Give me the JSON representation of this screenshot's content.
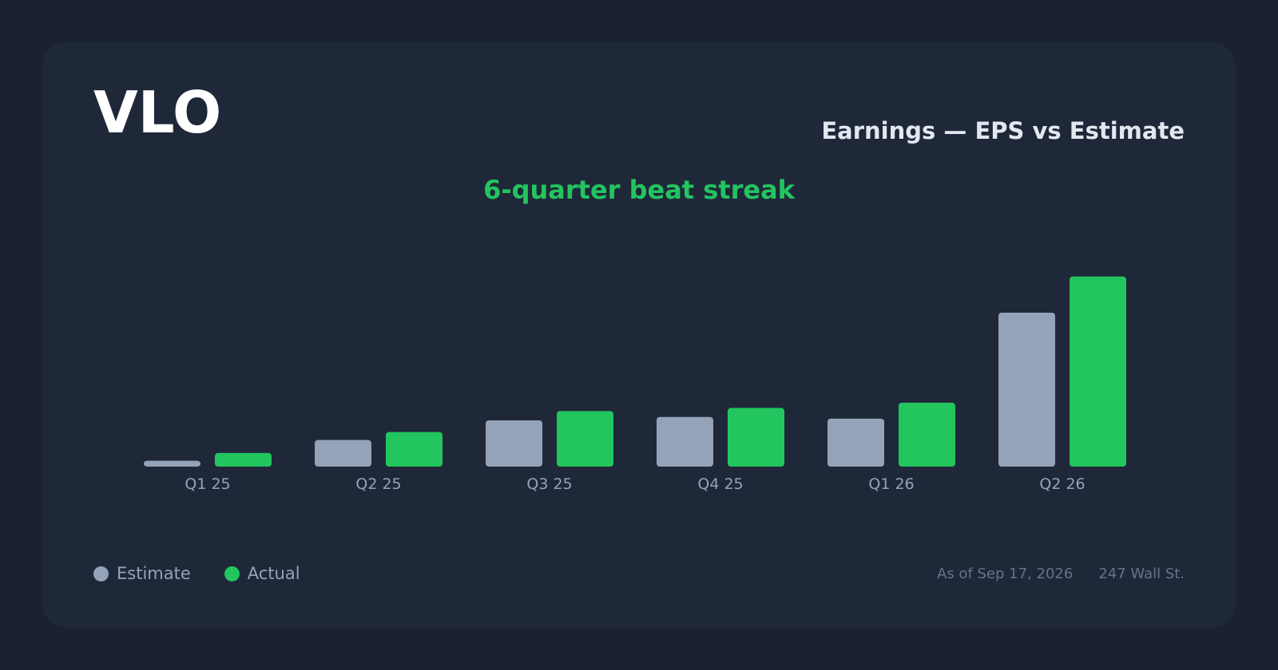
{
  "header": {
    "ticker": "VLO",
    "title": "Earnings — EPS vs Estimate",
    "streak_note": "6-quarter beat streak"
  },
  "colors": {
    "estimate": "#94a3b8",
    "actual": "#22c55e",
    "tick_label": "#94a3b8"
  },
  "chart_data": {
    "type": "bar",
    "categories": [
      "Q1 25",
      "Q2 25",
      "Q3 25",
      "Q4 25",
      "Q1 26",
      "Q2 26"
    ],
    "series": [
      {
        "name": "Estimate",
        "values": [
          0.35,
          1.59,
          2.77,
          2.97,
          2.87,
          9.21
        ]
      },
      {
        "name": "Actual",
        "values": [
          0.82,
          2.07,
          3.32,
          3.51,
          3.82,
          11.37
        ]
      }
    ],
    "ylim": [
      0,
      12.5
    ],
    "grid": false,
    "legend": "bottom-left"
  },
  "footer": {
    "as_of": "As of Sep 17, 2026",
    "source": "247 Wall St."
  }
}
